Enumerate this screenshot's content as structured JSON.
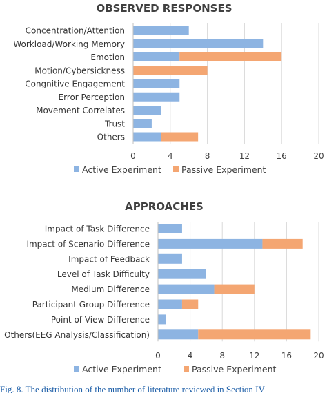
{
  "colors": {
    "active": "#8db4e2",
    "passive": "#f4a672",
    "grid": "#d9d9d9",
    "text": "#404040"
  },
  "legend": {
    "active": "Active Experiment",
    "passive": "Passive Experiment"
  },
  "caption": "Fig. 8.   The distribution of the number of literature reviewed in Section IV",
  "chart_data": [
    {
      "type": "bar",
      "orientation": "horizontal",
      "stacked": true,
      "title": "OBSERVED RESPONSES",
      "categories": [
        "Concentration/Attention",
        "Workload/Working Memory",
        "Emotion",
        "Motion/Cybersickness",
        "Congnitive Engagement",
        "Error Perception",
        "Movement Correlates",
        "Trust",
        "Others"
      ],
      "series": [
        {
          "name": "Active Experiment",
          "values": [
            6,
            14,
            5,
            0,
            5,
            5,
            3,
            2,
            3
          ]
        },
        {
          "name": "Passive Experiment",
          "values": [
            0,
            0,
            11,
            8,
            0,
            0,
            0,
            0,
            4
          ]
        }
      ],
      "xlim": [
        0,
        20
      ],
      "xticks": [
        0,
        4,
        8,
        12,
        16,
        20
      ],
      "grid": true,
      "legend_position": "bottom"
    },
    {
      "type": "bar",
      "orientation": "horizontal",
      "stacked": true,
      "title": "APPROACHES",
      "categories": [
        "Impact of Task Difference",
        "Impact of Scenario Difference",
        "Impact of Feedback",
        "Level of Task Difficulty",
        "Medium Difference",
        "Participant Group Difference",
        "Point of View Difference",
        "Others(EEG Analysis/Classification)"
      ],
      "series": [
        {
          "name": "Active Experiment",
          "values": [
            3,
            13,
            3,
            6,
            7,
            3,
            1,
            5
          ]
        },
        {
          "name": "Passive Experiment",
          "values": [
            0,
            5,
            0,
            0,
            5,
            2,
            0,
            14
          ]
        }
      ],
      "xlim": [
        0,
        20
      ],
      "xticks": [
        0,
        4,
        8,
        12,
        16,
        20
      ],
      "grid": true,
      "legend_position": "bottom"
    }
  ]
}
